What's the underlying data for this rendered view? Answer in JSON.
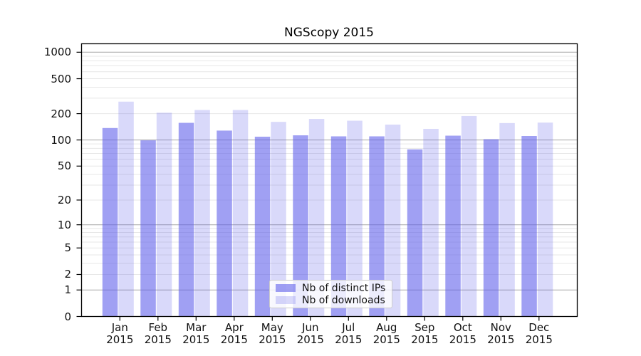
{
  "colors": {
    "series_ips": "rgba(92,92,235,0.58)",
    "series_downloads": "rgba(92,92,235,0.23)",
    "grid_major": "#b0b0b0",
    "grid_minor": "#e7e7e7",
    "axis": "#000000",
    "background": "#ffffff"
  },
  "chart_data": {
    "type": "bar",
    "title": "NGScopy 2015",
    "xlabel": "",
    "ylabel": "",
    "year": "2015",
    "categories": [
      "Jan",
      "Feb",
      "Mar",
      "Apr",
      "May",
      "Jun",
      "Jul",
      "Aug",
      "Sep",
      "Oct",
      "Nov",
      "Dec"
    ],
    "series": [
      {
        "name": "Nb of distinct IPs",
        "values": [
          137,
          99,
          157,
          128,
          109,
          113,
          110,
          110,
          78,
          112,
          102,
          111
        ]
      },
      {
        "name": "Nb of downloads",
        "values": [
          274,
          205,
          220,
          220,
          161,
          174,
          166,
          150,
          134,
          188,
          156,
          158
        ]
      }
    ],
    "y_axis": {
      "scale": "log10(value+1)",
      "tick_values": [
        0,
        1,
        2,
        5,
        10,
        20,
        50,
        100,
        200,
        500,
        1000
      ],
      "tick_labels": [
        "0",
        "1",
        "2",
        "5",
        "10",
        "20",
        "50",
        "100",
        "200",
        "500",
        "1000"
      ],
      "range_top": 1200
    },
    "grid": {
      "major_values": [
        1,
        10,
        100,
        1000
      ],
      "minor_per_decade": [
        2,
        3,
        4,
        5,
        6,
        7,
        8,
        9
      ],
      "grid_on": true
    },
    "legend_position": "lower center"
  }
}
